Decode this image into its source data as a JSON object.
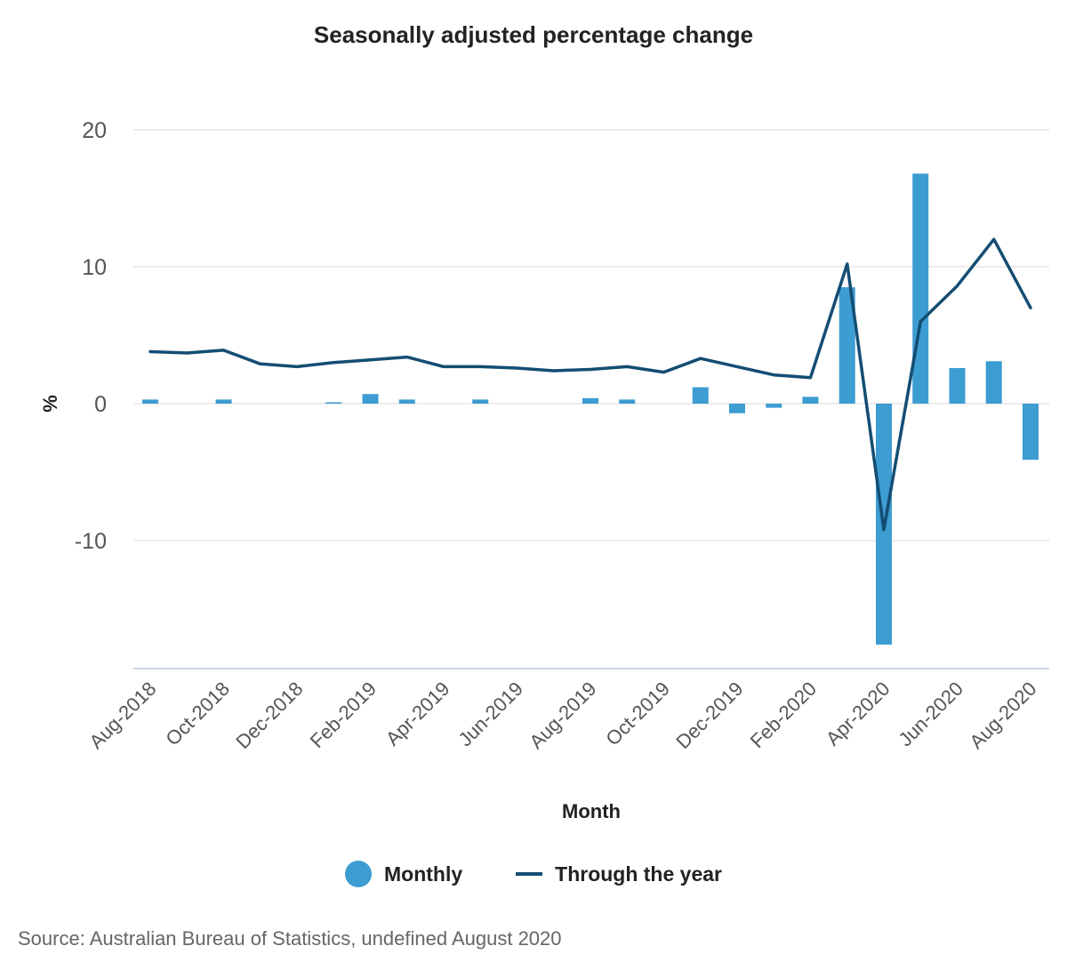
{
  "chart_data": {
    "type": "bar",
    "title": "Seasonally adjusted percentage change",
    "xlabel": "Month",
    "ylabel": "%",
    "ylim": [
      -19,
      20
    ],
    "yticks": [
      20,
      10,
      0,
      -10
    ],
    "grid": true,
    "legend_position": "bottom-center",
    "categories": [
      "Aug-2018",
      "Sep-2018",
      "Oct-2018",
      "Nov-2018",
      "Dec-2018",
      "Jan-2019",
      "Feb-2019",
      "Mar-2019",
      "Apr-2019",
      "May-2019",
      "Jun-2019",
      "Jul-2019",
      "Aug-2019",
      "Sep-2019",
      "Oct-2019",
      "Nov-2019",
      "Dec-2019",
      "Jan-2020",
      "Feb-2020",
      "Mar-2020",
      "Apr-2020",
      "May-2020",
      "Jun-2020",
      "Jul-2020",
      "Aug-2020"
    ],
    "xtick_labels": [
      "Aug-2018",
      "Oct-2018",
      "Dec-2018",
      "Feb-2019",
      "Apr-2019",
      "Jun-2019",
      "Aug-2019",
      "Oct-2019",
      "Dec-2019",
      "Feb-2020",
      "Apr-2020",
      "Jun-2020",
      "Aug-2020"
    ],
    "series": [
      {
        "name": "Monthly",
        "type": "bar",
        "color": "#3d9cd2",
        "values": [
          0.3,
          0.0,
          0.3,
          0.0,
          0.0,
          0.1,
          0.7,
          0.3,
          0.0,
          0.3,
          0.0,
          0.0,
          0.4,
          0.3,
          0.0,
          1.2,
          -0.7,
          -0.3,
          0.5,
          8.5,
          -17.6,
          16.8,
          2.6,
          3.1,
          -4.1
        ]
      },
      {
        "name": "Through the year",
        "type": "line",
        "color": "#144d73",
        "values": [
          3.8,
          3.7,
          3.9,
          2.9,
          2.7,
          3.0,
          3.2,
          3.4,
          2.7,
          2.7,
          2.6,
          2.4,
          2.5,
          2.7,
          2.3,
          3.3,
          2.7,
          2.1,
          1.9,
          10.2,
          -9.2,
          6.0,
          8.6,
          12.0,
          7.0
        ]
      }
    ]
  },
  "source": "Source: Australian Bureau of Statistics, undefined August 2020"
}
